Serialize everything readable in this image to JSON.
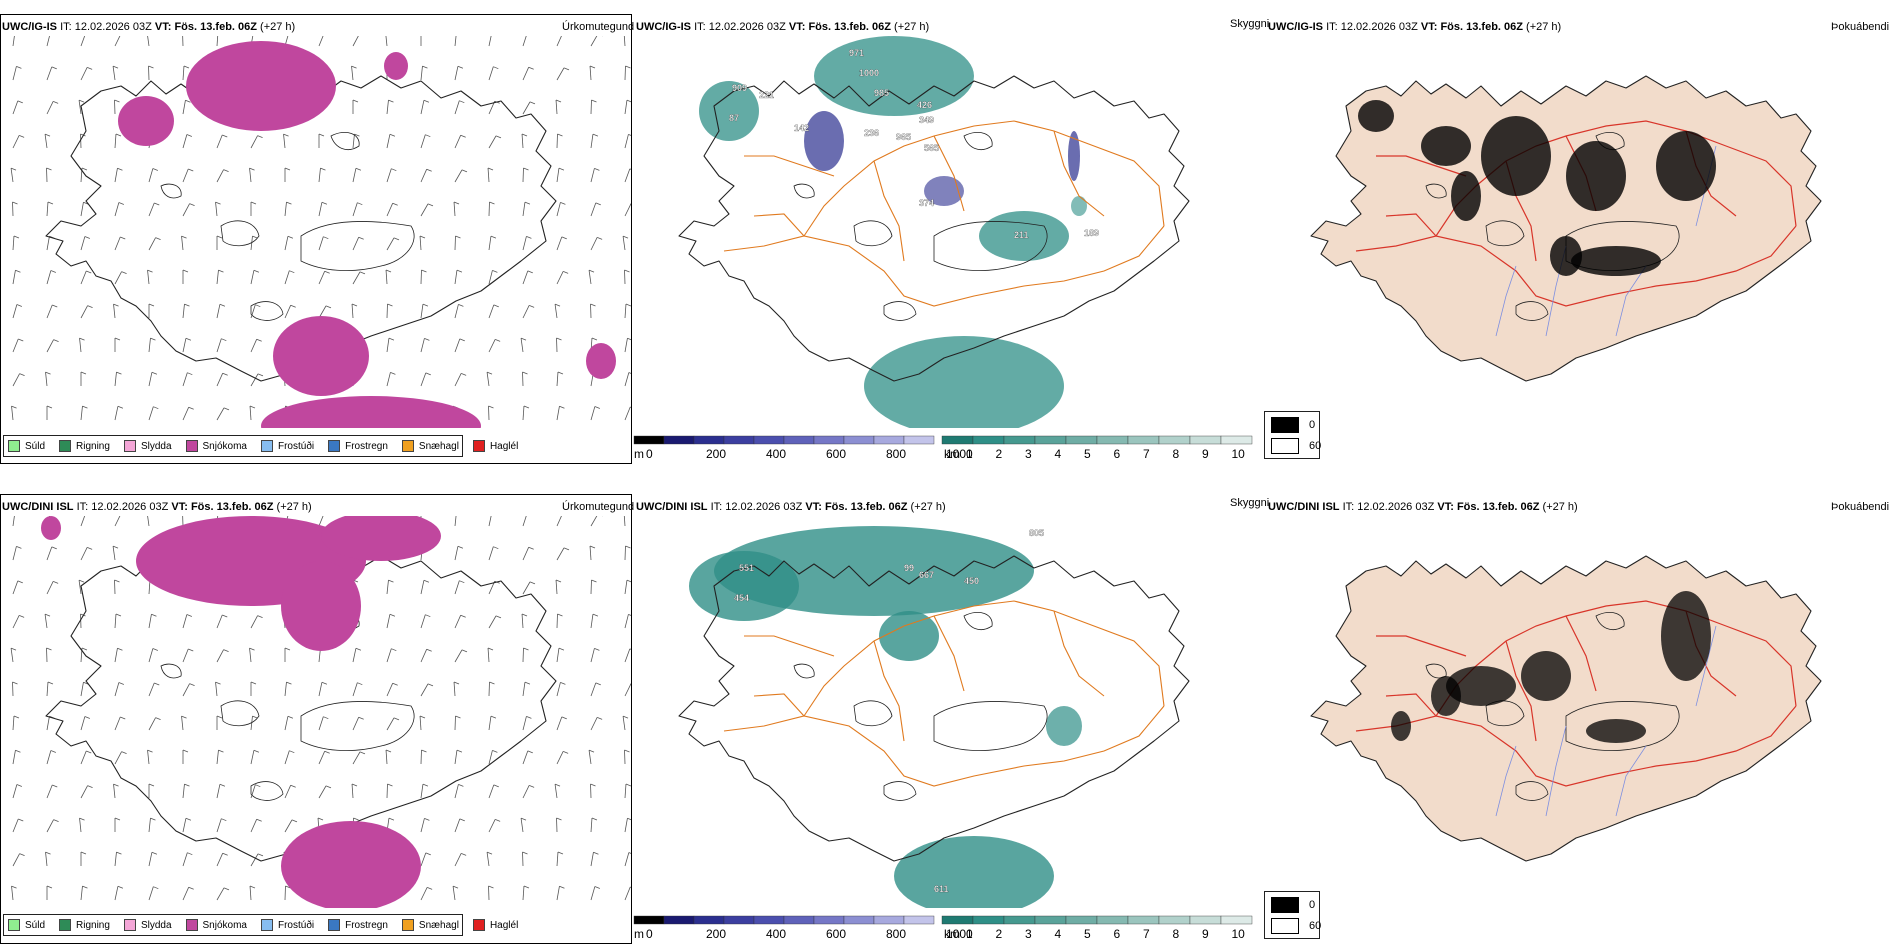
{
  "panels": [
    {
      "id": "r1c1",
      "model": "UWC/IG-IS",
      "it_label": "IT:",
      "it_value": "12.02.2026 03Z",
      "vt_label": "VT:",
      "vt_value": "Fös. 13.feb. 06Z",
      "lead": "(+27 h)",
      "name": "Úrkomutegund"
    },
    {
      "id": "r1c2",
      "model": "UWC/IG-IS",
      "it_label": "IT:",
      "it_value": "12.02.2026 03Z",
      "vt_label": "VT:",
      "vt_value": "Fös. 13.feb. 06Z",
      "lead": "(+27 h)",
      "name": "Skyggni"
    },
    {
      "id": "r1c3",
      "model": "UWC/IG-IS",
      "it_label": "IT:",
      "it_value": "12.02.2026 03Z",
      "vt_label": "VT:",
      "vt_value": "Fös. 13.feb. 06Z",
      "lead": "(+27 h)",
      "name": "Þokuábendi"
    },
    {
      "id": "r2c1",
      "model": "UWC/DINI ISL",
      "it_label": "IT:",
      "it_value": "12.02.2026 03Z",
      "vt_label": "VT:",
      "vt_value": "Fös. 13.feb. 06Z",
      "lead": "(+27 h)",
      "name": "Úrkomutegund"
    },
    {
      "id": "r2c2",
      "model": "UWC/DINI ISL",
      "it_label": "IT:",
      "it_value": "12.02.2026 03Z",
      "vt_label": "VT:",
      "vt_value": "Fös. 13.feb. 06Z",
      "lead": "(+27 h)",
      "name": "Skyggni"
    },
    {
      "id": "r2c3",
      "model": "UWC/DINI ISL",
      "it_label": "IT:",
      "it_value": "12.02.2026 03Z",
      "vt_label": "VT:",
      "vt_value": "Fös. 13.feb. 06Z",
      "lead": "(+27 h)",
      "name": "Þokuábendi"
    }
  ],
  "precip_legend": [
    {
      "label": "Súld",
      "color": "#90ee90"
    },
    {
      "label": "Rigning",
      "color": "#2e8b57"
    },
    {
      "label": "Slydda",
      "color": "#f4a6d7"
    },
    {
      "label": "Snjókoma",
      "color": "#c0479e"
    },
    {
      "label": "Frostúði",
      "color": "#87bdf0"
    },
    {
      "label": "Frostregn",
      "color": "#3a78c2"
    },
    {
      "label": "Snæhagl",
      "color": "#f0a020"
    },
    {
      "label": "Haglél",
      "color": "#e02020"
    }
  ],
  "vis_scale": {
    "unit_m": "m",
    "ticks_m": [
      "0",
      "200",
      "400",
      "600",
      "800",
      "1000"
    ],
    "unit_km": "km",
    "ticks_km": [
      "1",
      "2",
      "3",
      "4",
      "5",
      "6",
      "7",
      "8",
      "9",
      "10"
    ]
  },
  "fog_legend": [
    {
      "label": "0",
      "color": "#000000"
    },
    {
      "label": "60",
      "color": "#ffffff"
    }
  ],
  "vis_labels_top": [
    "971",
    "1000",
    "985",
    "909",
    "221",
    "87",
    "142",
    "426",
    "349",
    "236",
    "965",
    "565",
    "374",
    "211",
    "189"
  ],
  "vis_labels_bottom": [
    "551",
    "454",
    "99",
    "667",
    "450",
    "805",
    "611"
  ],
  "colors": {
    "snow": "#c0479e",
    "teal": "#2f8f87",
    "navy": "#2b2f8f",
    "road": "#e07a1f",
    "fog_land": "#f2dccb",
    "fog_road": "#d8352a",
    "river": "#7e8fe0"
  }
}
